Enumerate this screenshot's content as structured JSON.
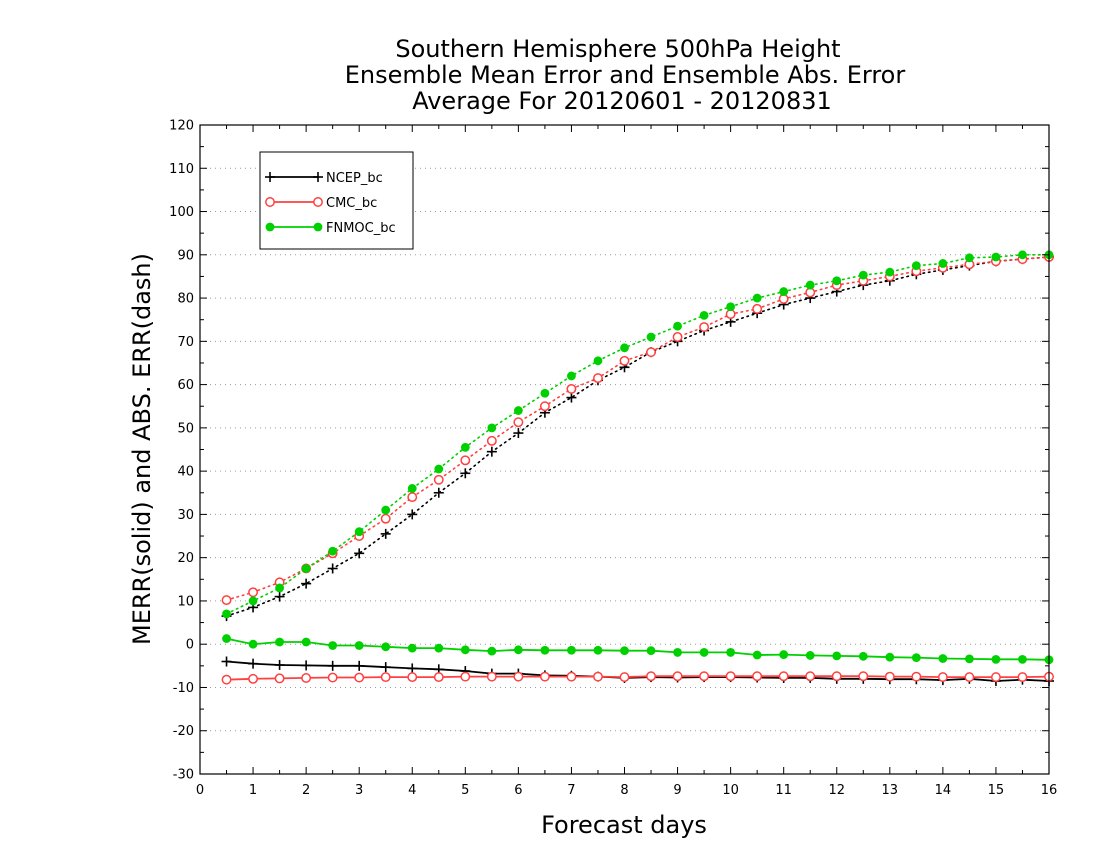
{
  "chart_data": {
    "type": "line",
    "title": [
      "Southern Hemisphere 500hPa Height",
      "Ensemble Mean Error and Ensemble Abs. Error",
      "Average For 20120601 - 20120831"
    ],
    "xlabel": "Forecast days",
    "ylabel": "MERR(solid) and ABS. ERR(dash)",
    "xlim": [
      0,
      16
    ],
    "ylim": [
      -30,
      120
    ],
    "xticks": [
      "0",
      "1",
      "2",
      "3",
      "4",
      "5",
      "6",
      "7",
      "8",
      "9",
      "10",
      "11",
      "12",
      "13",
      "14",
      "15",
      "16"
    ],
    "yticks": [
      "-30",
      "-20",
      "-10",
      "0",
      "10",
      "20",
      "30",
      "40",
      "50",
      "60",
      "70",
      "80",
      "90",
      "100",
      "110",
      "120"
    ],
    "grid": "horizontal dotted",
    "legend_position": "top-left",
    "x": [
      0.5,
      1.0,
      1.5,
      2.0,
      2.5,
      3.0,
      3.5,
      4.0,
      4.5,
      5.0,
      5.5,
      6.0,
      6.5,
      7.0,
      7.5,
      8.0,
      8.5,
      9.0,
      9.5,
      10.0,
      10.5,
      11.0,
      11.5,
      12.0,
      12.5,
      13.0,
      13.5,
      14.0,
      14.5,
      15.0,
      15.5,
      16.0
    ],
    "series": [
      {
        "name": "NCEP_bc",
        "color": "#000000",
        "marker": "plus",
        "merr": [
          -4.0,
          -4.5,
          -4.8,
          -4.9,
          -5.0,
          -5.0,
          -5.3,
          -5.6,
          -5.8,
          -6.2,
          -6.8,
          -6.8,
          -7.2,
          -7.3,
          -7.5,
          -7.8,
          -7.6,
          -7.7,
          -7.6,
          -7.6,
          -7.7,
          -7.8,
          -7.8,
          -8.0,
          -8.0,
          -8.1,
          -8.1,
          -8.3,
          -8.0,
          -8.5,
          -8.2,
          -8.5
        ],
        "abs_err": [
          6.5,
          8.5,
          11.0,
          14.0,
          17.5,
          21.0,
          25.5,
          30.0,
          35.0,
          39.5,
          44.5,
          48.8,
          53.5,
          57.0,
          61.0,
          64.0,
          67.5,
          70.0,
          72.5,
          74.5,
          76.5,
          78.5,
          80.0,
          81.5,
          83.0,
          84.0,
          85.5,
          86.5,
          87.5,
          88.5,
          89.0,
          89.5
        ]
      },
      {
        "name": "CMC_bc",
        "color": "#ff4040",
        "marker": "open-circle",
        "merr": [
          -8.2,
          -8.0,
          -7.9,
          -7.8,
          -7.7,
          -7.7,
          -7.6,
          -7.6,
          -7.6,
          -7.5,
          -7.5,
          -7.5,
          -7.5,
          -7.5,
          -7.5,
          -7.6,
          -7.4,
          -7.4,
          -7.4,
          -7.4,
          -7.4,
          -7.4,
          -7.4,
          -7.4,
          -7.4,
          -7.5,
          -7.5,
          -7.6,
          -7.6,
          -7.6,
          -7.6,
          -7.5
        ],
        "abs_err": [
          10.2,
          12.0,
          14.3,
          17.5,
          21.0,
          25.0,
          29.0,
          34.0,
          38.0,
          42.5,
          47.0,
          51.3,
          55.0,
          59.0,
          61.5,
          65.5,
          67.5,
          71.0,
          73.3,
          76.3,
          77.5,
          79.8,
          81.3,
          83.0,
          84.0,
          85.0,
          86.2,
          87.0,
          87.8,
          88.5,
          89.0,
          89.5
        ]
      },
      {
        "name": "FNMOC_bc",
        "color": "#00d000",
        "marker": "filled-circle",
        "merr": [
          1.3,
          0.0,
          0.5,
          0.5,
          -0.3,
          -0.3,
          -0.6,
          -0.9,
          -0.9,
          -1.3,
          -1.6,
          -1.3,
          -1.4,
          -1.4,
          -1.4,
          -1.5,
          -1.5,
          -1.9,
          -1.9,
          -1.9,
          -2.5,
          -2.4,
          -2.6,
          -2.7,
          -2.8,
          -3.0,
          -3.1,
          -3.3,
          -3.4,
          -3.5,
          -3.5,
          -3.6
        ],
        "abs_err": [
          7.0,
          10.0,
          13.0,
          17.5,
          21.5,
          26.0,
          31.0,
          36.0,
          40.5,
          45.5,
          50.0,
          54.0,
          58.0,
          62.0,
          65.5,
          68.5,
          71.0,
          73.5,
          76.0,
          78.0,
          80.0,
          81.5,
          83.0,
          84.0,
          85.3,
          86.0,
          87.5,
          88.0,
          89.3,
          89.5,
          90.0,
          90.0
        ]
      }
    ]
  }
}
